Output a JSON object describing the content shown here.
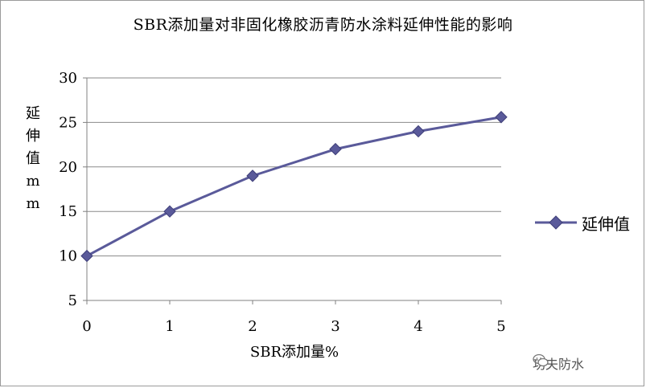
{
  "chart_data": {
    "type": "line",
    "title": "SBR添加量对非固化橡胶沥青防水涂料延伸性能的影响",
    "xlabel": "SBR添加量%",
    "ylabel": "延伸值mm",
    "x": [
      0,
      1,
      2,
      3,
      4,
      5
    ],
    "xticks": [
      "0",
      "1",
      "2",
      "3",
      "4",
      "5"
    ],
    "yticks": [
      "5",
      "10",
      "15",
      "20",
      "25",
      "30"
    ],
    "ylim": [
      5,
      30
    ],
    "xlim": [
      0,
      5
    ],
    "grid": "horizontal",
    "legend_position": "right",
    "series": [
      {
        "name": "延伸值",
        "values": [
          10,
          15,
          19,
          22,
          24,
          25.6
        ],
        "color": "#5a5a9a",
        "marker": "diamond"
      }
    ]
  },
  "watermark": {
    "text": "功夫防水",
    "icon": "wechat-icon"
  }
}
